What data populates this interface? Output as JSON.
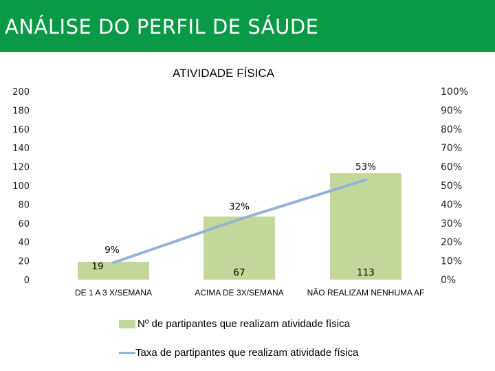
{
  "header": {
    "title": "ANÁLISE DO PERFIL DE SÁUDE"
  },
  "colors": {
    "header_green": "#0a9a47",
    "bar_fill": "#c4d79b",
    "line_stroke": "#95b3d7"
  },
  "chart_data": {
    "type": "bar",
    "title": "ATIVIDADE FÍSICA",
    "categories": [
      "DE 1 A 3 X/SEMANA",
      "ACIMA DE 3X/SEMANA",
      "NÃO REALIZAM NENHUMA AF"
    ],
    "series": [
      {
        "name": "Nº de partipantes que realizam atividade física",
        "type": "bar",
        "axis": "left",
        "values": [
          19,
          67,
          113
        ],
        "labels": [
          "19",
          "67",
          "113"
        ]
      },
      {
        "name": "Taxa de partipantes que realizam atividade física",
        "type": "line",
        "axis": "right",
        "values": [
          9,
          32,
          53
        ],
        "labels": [
          "9%",
          "32%",
          "53%"
        ]
      }
    ],
    "y_left": {
      "min": 0,
      "max": 200,
      "ticks": [
        "0",
        "20",
        "40",
        "60",
        "80",
        "100",
        "120",
        "140",
        "160",
        "180",
        "200"
      ]
    },
    "y_right": {
      "min": 0,
      "max": 100,
      "ticks": [
        "0%",
        "10%",
        "20%",
        "30%",
        "40%",
        "50%",
        "60%",
        "70%",
        "80%",
        "90%",
        "100%"
      ]
    },
    "grid": false,
    "legend": "bottom"
  }
}
